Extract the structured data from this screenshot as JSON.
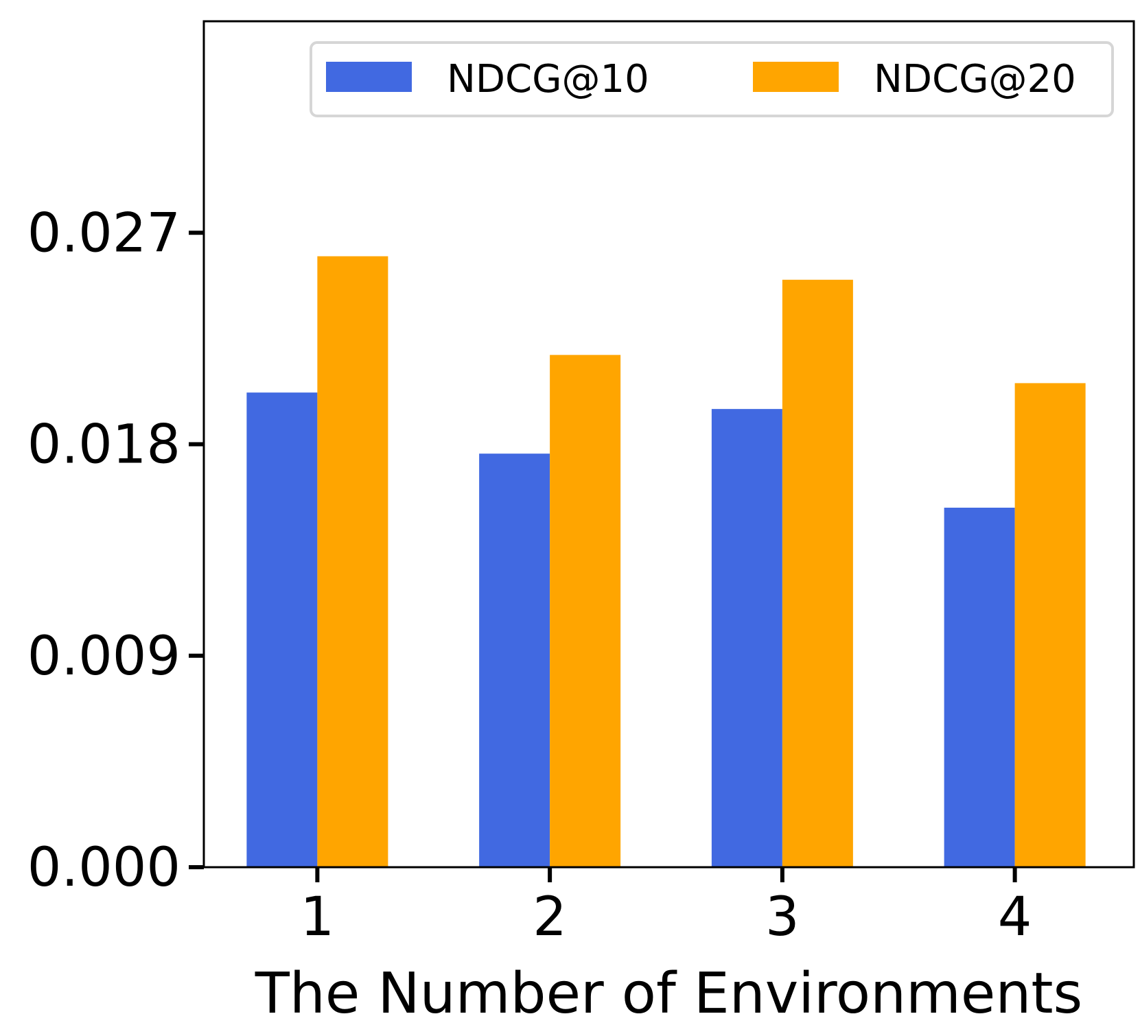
{
  "chart_data": {
    "type": "bar",
    "title": "",
    "xlabel": "The Number of Environments",
    "ylabel": "",
    "categories": [
      "1",
      "2",
      "3",
      "4"
    ],
    "series": [
      {
        "name": "NDCG@10",
        "color": "#4169E1",
        "values": [
          0.0202,
          0.0176,
          0.0195,
          0.0153
        ]
      },
      {
        "name": "NDCG@20",
        "color": "#FFA500",
        "values": [
          0.026,
          0.0218,
          0.025,
          0.0206
        ]
      }
    ],
    "yticks": [
      0.0,
      0.009,
      0.018,
      0.027
    ],
    "ytick_labels": [
      "0.000",
      "0.009",
      "0.018",
      "0.027"
    ],
    "ylim": [
      0,
      0.036
    ],
    "grid": false,
    "legend": {
      "placement": "top-right",
      "columns": 2
    }
  }
}
